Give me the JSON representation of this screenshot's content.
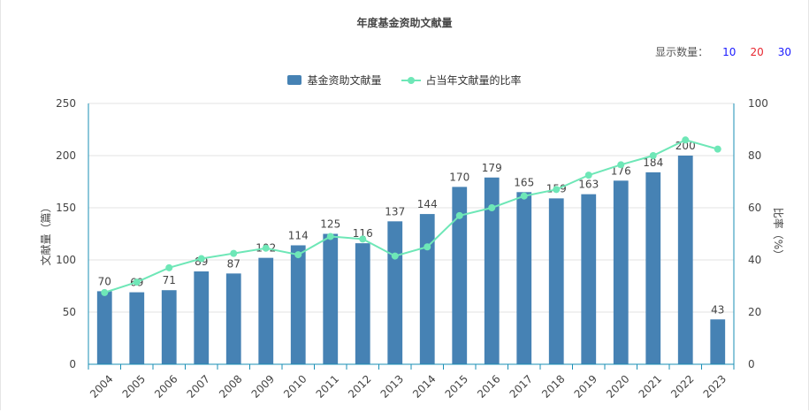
{
  "title": "年度基金资助文献量",
  "display_count": {
    "label": "显示数量：",
    "options": [
      {
        "label": "10",
        "color": "#1a1aff"
      },
      {
        "label": "20",
        "color": "#e8262f"
      },
      {
        "label": "30",
        "color": "#1a1aff"
      }
    ]
  },
  "legend": {
    "bar_label": "基金资助文献量",
    "line_label": "占当年文献量的比率"
  },
  "colors": {
    "bar": "#4682b4",
    "line": "#6ee7b7",
    "axis": "#1a8fb5",
    "grid": "#e3e3e3"
  },
  "chart_data": {
    "type": "bar",
    "title": "年度基金资助文献量",
    "categories": [
      "2004",
      "2005",
      "2006",
      "2007",
      "2008",
      "2009",
      "2010",
      "2011",
      "2012",
      "2013",
      "2014",
      "2015",
      "2016",
      "2017",
      "2018",
      "2019",
      "2020",
      "2021",
      "2022",
      "2023"
    ],
    "series": [
      {
        "name": "基金资助文献量",
        "type": "bar",
        "axis": "left",
        "values": [
          70,
          69,
          71,
          89,
          87,
          102,
          114,
          125,
          116,
          137,
          144,
          170,
          179,
          165,
          159,
          163,
          176,
          184,
          200,
          43
        ]
      },
      {
        "name": "占当年文献量的比率",
        "type": "line",
        "axis": "right",
        "values": [
          27.5,
          31.5,
          37,
          40.5,
          42.5,
          44.5,
          42,
          49,
          48,
          41.5,
          45,
          57,
          60,
          64.5,
          67,
          72.5,
          76.5,
          80,
          86,
          82.5
        ]
      }
    ],
    "ylabel_left": "文献量（篇）",
    "ylabel_right": "比率（%）",
    "ylim_left": [
      0,
      250
    ],
    "ylim_right": [
      0,
      100
    ],
    "yticks_left": [
      "0",
      "50",
      "100",
      "150",
      "200",
      "250"
    ],
    "yticks_right": [
      "0",
      "20",
      "40",
      "60",
      "80",
      "100"
    ],
    "grid": true,
    "legend_position": "top-center"
  }
}
